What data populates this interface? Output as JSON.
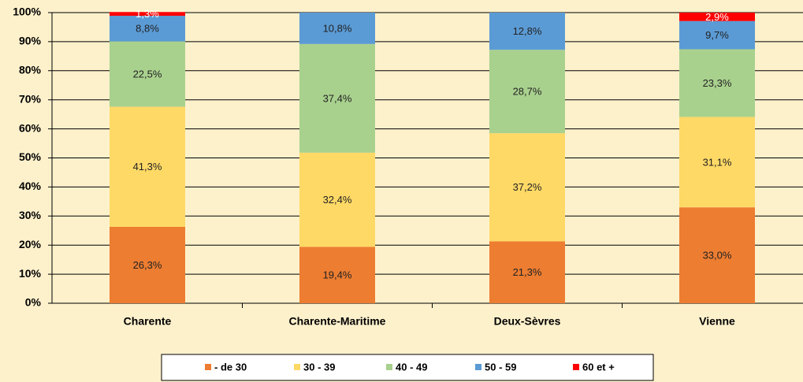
{
  "chart_data": {
    "type": "stacked_bar",
    "categories": [
      "Charente",
      "Charente-Maritime",
      "Deux-Sèvres",
      "Vienne"
    ],
    "series": [
      {
        "name": "- de 30",
        "color": "#ed7d31",
        "values": [
          26.3,
          19.4,
          21.3,
          33.0
        ],
        "value_labels": [
          "26,3%",
          "19,4%",
          "21,3%",
          "33,0%"
        ]
      },
      {
        "name": "30 - 39",
        "color": "#ffd966",
        "values": [
          41.3,
          32.4,
          37.2,
          31.1
        ],
        "value_labels": [
          "41,3%",
          "32,4%",
          "37,2%",
          "31,1%"
        ]
      },
      {
        "name": "40 - 49",
        "color": "#a9d18e",
        "values": [
          22.5,
          37.4,
          28.7,
          23.3
        ],
        "value_labels": [
          "22,5%",
          "37,4%",
          "28,7%",
          "23,3%"
        ]
      },
      {
        "name": "50 -  59",
        "color": "#5b9bd5",
        "values": [
          8.8,
          10.8,
          12.8,
          9.7
        ],
        "value_labels": [
          "8,8%",
          "10,8%",
          "12,8%",
          "9,7%"
        ]
      },
      {
        "name": "60 et +",
        "color": "#ff0000",
        "values": [
          1.3,
          null,
          null,
          2.9
        ],
        "value_labels": [
          "1,3%",
          null,
          null,
          "2,9%"
        ]
      }
    ],
    "ylim": [
      0,
      100
    ],
    "yticks": [
      {
        "value": 0,
        "label": "0%"
      },
      {
        "value": 10,
        "label": "10%"
      },
      {
        "value": 20,
        "label": "20%"
      },
      {
        "value": 30,
        "label": "30%"
      },
      {
        "value": 40,
        "label": "40%"
      },
      {
        "value": 50,
        "label": "50%"
      },
      {
        "value": 60,
        "label": "60%"
      },
      {
        "value": 70,
        "label": "70%"
      },
      {
        "value": 80,
        "label": "80%"
      },
      {
        "value": 90,
        "label": "90%"
      },
      {
        "value": 100,
        "label": "100%"
      }
    ],
    "grid": true,
    "legend": "bottom"
  }
}
